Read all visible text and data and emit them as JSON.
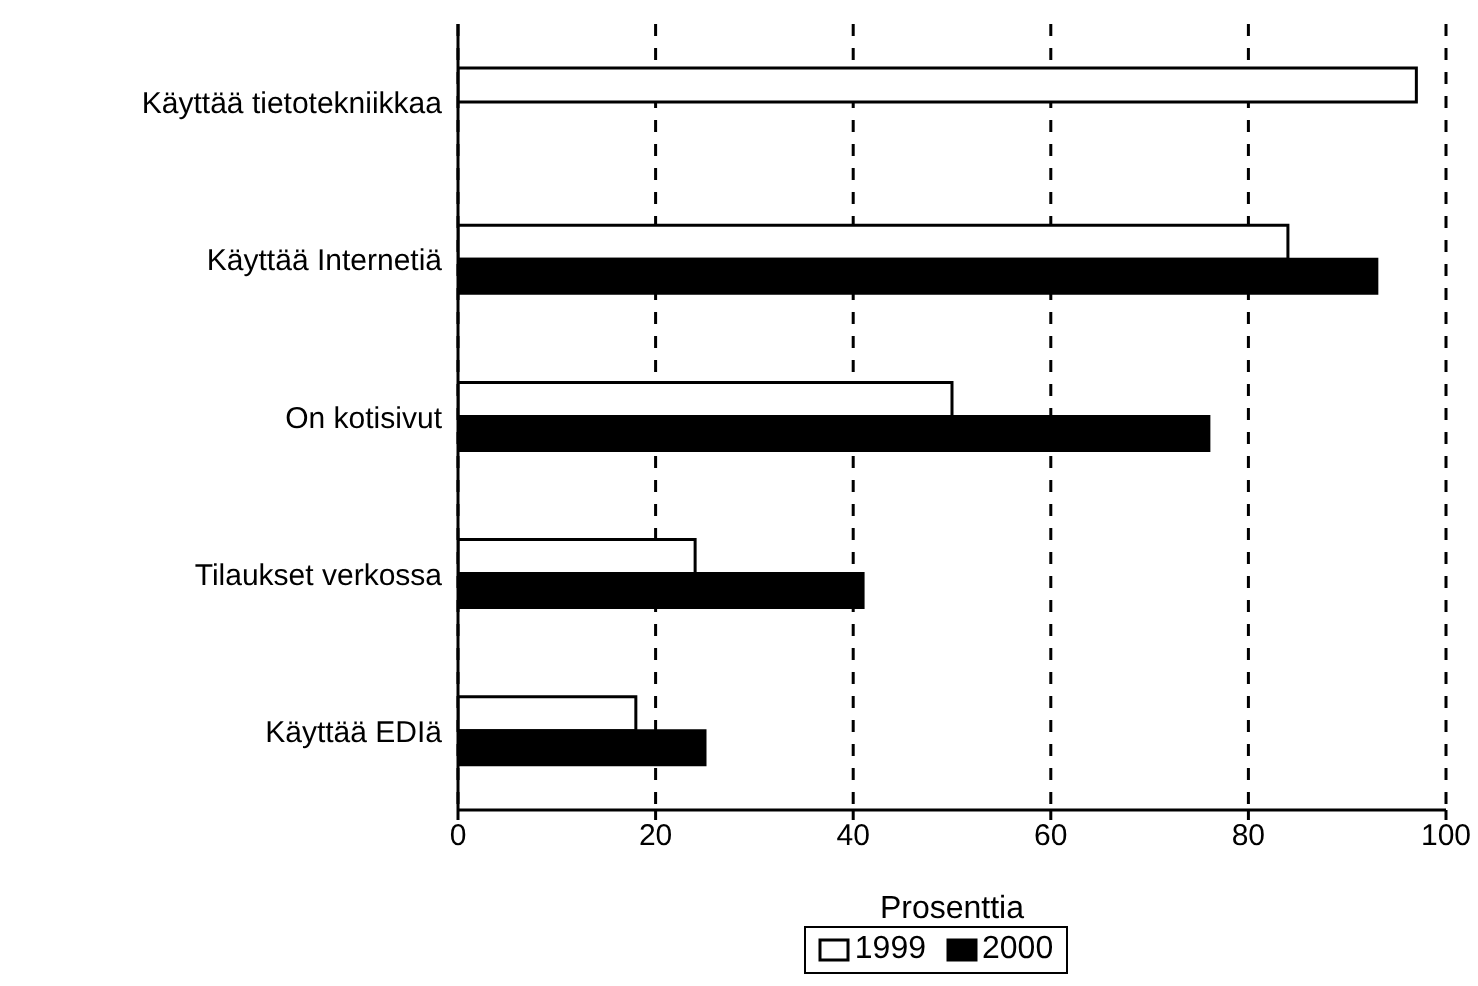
{
  "chart_data": {
    "type": "bar",
    "orientation": "horizontal",
    "xlabel": "Prosenttia",
    "categories": [
      "Käyttää tietotekniikkaa",
      "Käyttää Internetiä",
      "On kotisivut",
      "Tilaukset verkossa",
      "Käyttää EDIä"
    ],
    "series": [
      {
        "name": "1999",
        "color": "#ffffff",
        "values": [
          97,
          84,
          50,
          24,
          18
        ]
      },
      {
        "name": "2000",
        "color": "#000000",
        "values": [
          null,
          93,
          76,
          41,
          25
        ]
      }
    ],
    "xlim": [
      0,
      100
    ],
    "xticks": [
      0,
      20,
      40,
      60,
      80,
      100
    ],
    "grid": "x",
    "legend": "bottom"
  }
}
